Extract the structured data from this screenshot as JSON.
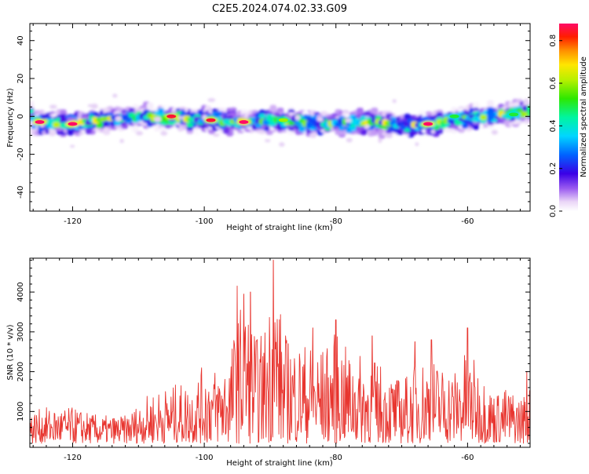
{
  "title": "C2E5.2024.074.02.33.G09",
  "chart_data": [
    {
      "type": "heatmap",
      "xlabel": "Height of straight line (km)",
      "ylabel": "Frequency (Hz)",
      "xlim": [
        -126.5,
        -50.5
      ],
      "ylim": [
        -50,
        49
      ],
      "xticks": [
        -120,
        -100,
        -80,
        -60
      ],
      "yticks": [
        -40,
        -20,
        0,
        20,
        40
      ],
      "band_center_hz": [
        [
          -126,
          -3
        ],
        [
          -120,
          -4
        ],
        [
          -110,
          0
        ],
        [
          -100,
          -2
        ],
        [
          -94,
          -3
        ],
        [
          -90,
          -2
        ],
        [
          -85,
          -3
        ],
        [
          -80,
          -4
        ],
        [
          -75,
          -3
        ],
        [
          -70,
          -5
        ],
        [
          -65,
          -4
        ],
        [
          -60,
          -1
        ],
        [
          -55,
          1
        ],
        [
          -51,
          2
        ]
      ],
      "band_width_hz": 10,
      "peaks": [
        {
          "x": -125,
          "y": -3,
          "value": 0.88
        },
        {
          "x": -120,
          "y": -4,
          "value": 0.9
        },
        {
          "x": -105,
          "y": 0,
          "value": 0.85
        },
        {
          "x": -99,
          "y": -2,
          "value": 0.85
        },
        {
          "x": -94,
          "y": -3,
          "value": 0.9
        },
        {
          "x": -88,
          "y": -2,
          "value": 0.6
        },
        {
          "x": -66,
          "y": -4,
          "value": 0.88
        },
        {
          "x": -62,
          "y": 0,
          "value": 0.5
        },
        {
          "x": -53,
          "y": 1,
          "value": 0.5
        }
      ]
    },
    {
      "type": "colorbar",
      "label": "Normalized spectral amplitude",
      "range": [
        0,
        0.88
      ],
      "ticks": [
        "0.0",
        "0.2",
        "0.4",
        "0.6",
        "0.8"
      ],
      "tick_values": [
        0,
        0.2,
        0.4,
        0.6,
        0.8
      ]
    },
    {
      "type": "line",
      "xlabel": "Height of straight line (km)",
      "ylabel": "SNR (10 * v/v)",
      "xlim": [
        -126.5,
        -50.5
      ],
      "ylim": [
        100,
        4850
      ],
      "xticks": [
        -120,
        -100,
        -80,
        -60
      ],
      "yticks": [
        1000,
        2000,
        3000,
        4000
      ],
      "color": "#e8352f",
      "envelope_x": [
        -126.5,
        -124,
        -120,
        -116,
        -112,
        -110,
        -108,
        -106,
        -104,
        -102,
        -100,
        -98,
        -96,
        -95,
        -94,
        -93,
        -92,
        -91,
        -90,
        -89,
        -88,
        -86,
        -84,
        -82,
        -80,
        -78,
        -76,
        -74,
        -72,
        -70,
        -68,
        -66,
        -64,
        -62,
        -60,
        -58,
        -56,
        -54,
        -52,
        -50.5
      ],
      "envelope_y": [
        1000,
        1100,
        1100,
        900,
        900,
        1200,
        1500,
        1600,
        1700,
        1700,
        2200,
        2100,
        2500,
        3500,
        3800,
        3500,
        2900,
        3000,
        4000,
        4400,
        3000,
        2800,
        2700,
        2600,
        3000,
        2500,
        2400,
        2300,
        2000,
        1800,
        2200,
        2400,
        2200,
        2100,
        2600,
        2000,
        1500,
        1600,
        1400,
        1600
      ],
      "peaks": [
        {
          "x": -95,
          "y": 4150
        },
        {
          "x": -94,
          "y": 3950
        },
        {
          "x": -93,
          "y": 4000
        },
        {
          "x": -89.5,
          "y": 4800
        },
        {
          "x": -83.5,
          "y": 3100
        },
        {
          "x": -80,
          "y": 3300
        },
        {
          "x": -74.5,
          "y": 2900
        },
        {
          "x": -68,
          "y": 2750
        },
        {
          "x": -65.5,
          "y": 2800
        },
        {
          "x": -60,
          "y": 3100
        },
        {
          "x": -51,
          "y": 2000
        }
      ]
    }
  ]
}
